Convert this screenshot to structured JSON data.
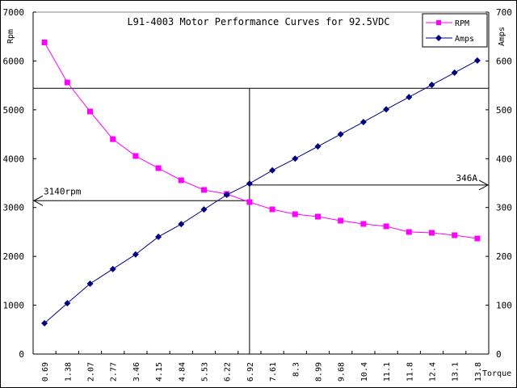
{
  "chart_data": {
    "type": "line",
    "title": "L91-4003 Motor Performance Curves for 92.5VDC",
    "xlabel": "Torque",
    "ylabel_left": "Rpm",
    "ylabel_right": "Amps",
    "categories": [
      "0.69",
      "1.38",
      "2.07",
      "2.77",
      "3.46",
      "4.15",
      "4.84",
      "5.53",
      "6.22",
      "6.92",
      "7.61",
      "8.3",
      "8.99",
      "9.68",
      "10.4",
      "11.1",
      "11.8",
      "12.4",
      "13.1",
      "13.8"
    ],
    "ylim_left": [
      0,
      7000
    ],
    "ylim_right": [
      0,
      700
    ],
    "yticks_left": [
      "0",
      "1000",
      "2000",
      "3000",
      "4000",
      "5000",
      "6000",
      "7000"
    ],
    "yticks_right": [
      "0",
      "100",
      "200",
      "300",
      "400",
      "500",
      "600",
      "700"
    ],
    "legend_position": "top-right",
    "series": [
      {
        "name": "RPM",
        "axis": "left",
        "color": "#ff00ff",
        "marker": "square",
        "values": [
          6380,
          5560,
          4965,
          4400,
          4055,
          3806,
          3558,
          3360,
          3277,
          3111,
          2962,
          2863,
          2813,
          2730,
          2664,
          2615,
          2499,
          2482,
          2433,
          2366
        ]
      },
      {
        "name": "Amps",
        "axis": "right",
        "color": "#000080",
        "marker": "diamond",
        "values": [
          63,
          104,
          144,
          174,
          204,
          240,
          266,
          296,
          326,
          349,
          376,
          400,
          425,
          450,
          475,
          501,
          526,
          551,
          576,
          601
        ]
      }
    ],
    "reference_lines": {
      "horizontal_left_value": 5440,
      "vertical_category_value": 6.92,
      "rpm_marker": {
        "label": "3140rpm",
        "value": 3140
      },
      "amps_marker": {
        "label": "346A",
        "value": 346
      }
    }
  }
}
